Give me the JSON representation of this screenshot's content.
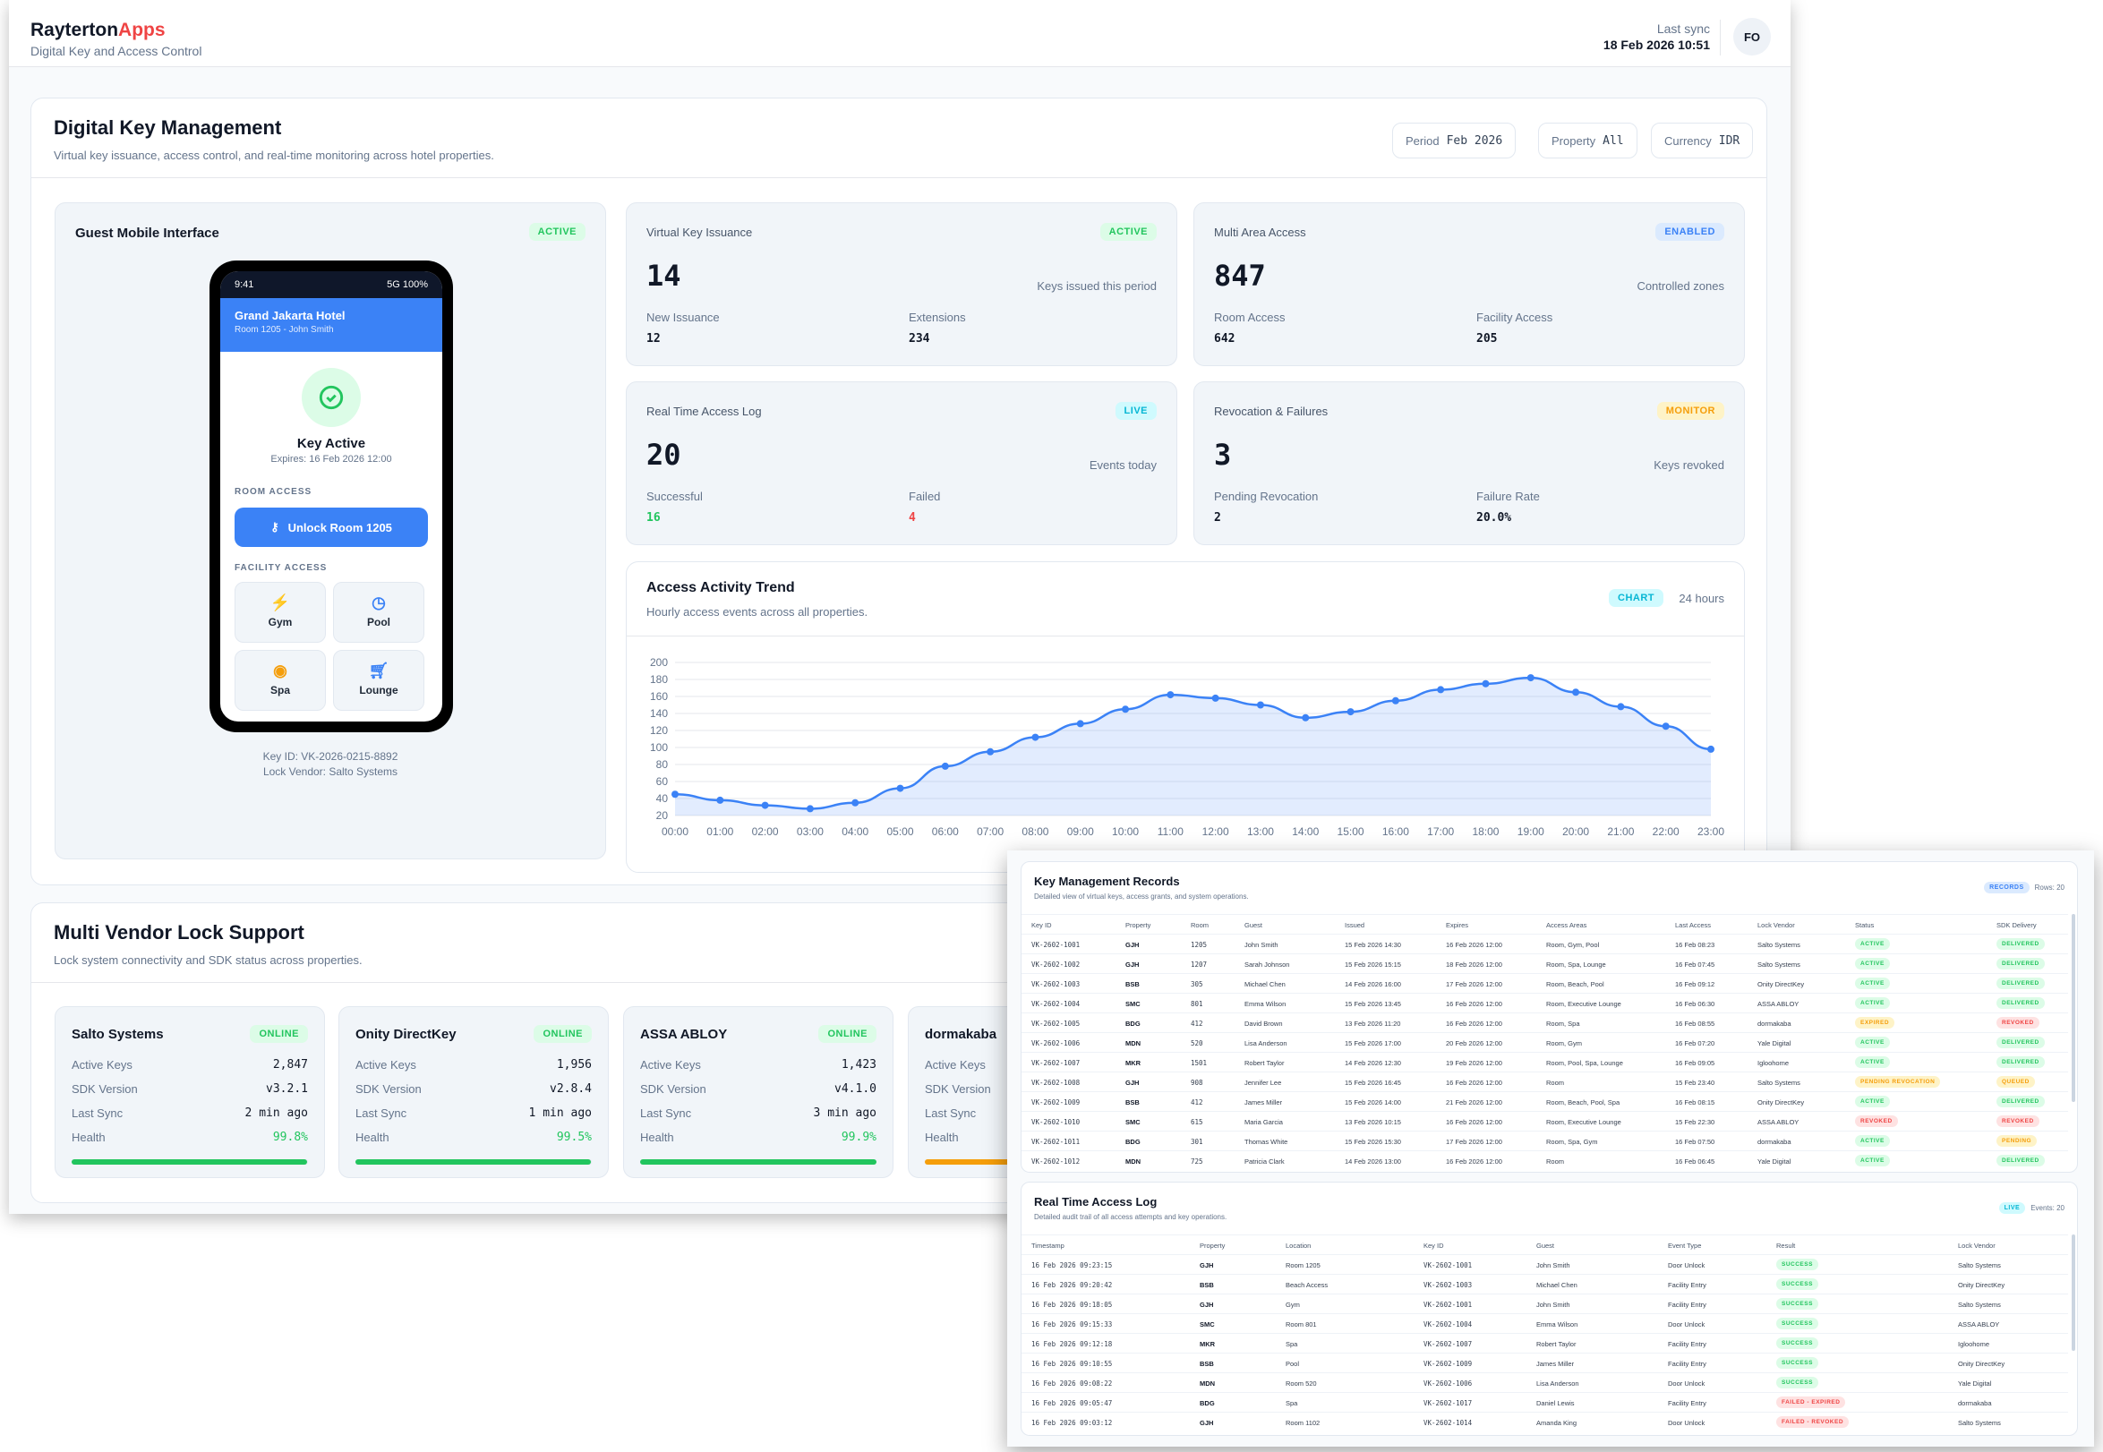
{
  "header": {
    "brand_main": "Rayterton",
    "brand_accent": "Apps",
    "subtitle": "Digital Key and Access Control",
    "last_sync_label": "Last sync",
    "last_sync_value": "18 Feb 2026 10:51",
    "avatar": "FO"
  },
  "page": {
    "title": "Digital Key Management",
    "subtitle": "Virtual key issuance, access control, and real-time monitoring across hotel properties.",
    "filters": [
      {
        "label": "Period",
        "value": "Feb 2026"
      },
      {
        "label": "Property",
        "value": "All"
      },
      {
        "label": "Currency",
        "value": "IDR"
      }
    ]
  },
  "guest": {
    "title": "Guest Mobile Interface",
    "badge": "ACTIVE",
    "time": "9:41",
    "signal": "5G 100%",
    "hotel": "Grand Jakarta Hotel",
    "room_guest": "Room 1205 - John Smith",
    "key_status": "Key Active",
    "expires": "Expires: 16 Feb 2026 12:00",
    "room_access": "ROOM ACCESS",
    "unlock": "Unlock Room 1205",
    "facility_access": "FACILITY ACCESS",
    "facilities": [
      {
        "label": "Gym",
        "icon": "bolt-icon"
      },
      {
        "label": "Pool",
        "icon": "clock-icon"
      },
      {
        "label": "Spa",
        "icon": "map-pin-icon"
      },
      {
        "label": "Lounge",
        "icon": "cart-icon"
      }
    ],
    "key_id": "Key ID: VK-2026-0215-8892",
    "vendor": "Lock Vendor: Salto Systems"
  },
  "stats": [
    {
      "title": "Virtual Key Issuance",
      "badge": "ACTIVE",
      "value": "14",
      "caption": "Keys issued this period",
      "l1": "New Issuance",
      "v1": "12",
      "l2": "Extensions",
      "v2": "234"
    },
    {
      "title": "Multi Area Access",
      "badge": "ENABLED",
      "value": "847",
      "caption": "Controlled zones",
      "l1": "Room Access",
      "v1": "642",
      "l2": "Facility Access",
      "v2": "205"
    },
    {
      "title": "Real Time Access Log",
      "badge": "LIVE",
      "value": "20",
      "caption": "Events today",
      "l1": "Successful",
      "v1": "16",
      "l2": "Failed",
      "v2": "4"
    },
    {
      "title": "Revocation & Failures",
      "badge": "MONITOR",
      "value": "3",
      "caption": "Keys revoked",
      "l1": "Pending Revocation",
      "v1": "2",
      "l2": "Failure Rate",
      "v2": "20.0%"
    }
  ],
  "trend": {
    "title": "Access Activity Trend",
    "subtitle": "Hourly access events across all properties.",
    "badge": "CHART",
    "range": "24 hours"
  },
  "chart_data": {
    "type": "area",
    "x": [
      "00:00",
      "01:00",
      "02:00",
      "03:00",
      "04:00",
      "05:00",
      "06:00",
      "07:00",
      "08:00",
      "09:00",
      "10:00",
      "11:00",
      "12:00",
      "13:00",
      "14:00",
      "15:00",
      "16:00",
      "17:00",
      "18:00",
      "19:00",
      "20:00",
      "21:00",
      "22:00",
      "23:00"
    ],
    "values": [
      45,
      38,
      32,
      28,
      35,
      52,
      78,
      95,
      112,
      128,
      145,
      162,
      158,
      150,
      135,
      142,
      155,
      168,
      175,
      182,
      165,
      148,
      125,
      98
    ],
    "ylim": [
      20,
      200
    ],
    "yticks": [
      "200",
      "180",
      "160",
      "140",
      "120",
      "100",
      "80",
      "60",
      "40",
      "20"
    ],
    "grid": true,
    "color": "#3b82f6"
  },
  "vendors_section": {
    "title": "Multi Vendor Lock Support",
    "subtitle": "Lock system connectivity and SDK status across properties.",
    "labels": {
      "keys": "Active Keys",
      "sdk": "SDK Version",
      "sync": "Last Sync",
      "health": "Health"
    },
    "vendors": [
      {
        "name": "Salto Systems",
        "status": "ONLINE",
        "keys": "2,847",
        "sdk": "v3.2.1",
        "sync": "2 min ago",
        "health": "99.8%",
        "health_pct": 99.8,
        "bar_color": "#22c55e"
      },
      {
        "name": "Onity DirectKey",
        "status": "ONLINE",
        "keys": "1,956",
        "sdk": "v2.8.4",
        "sync": "1 min ago",
        "health": "99.5%",
        "health_pct": 99.5,
        "bar_color": "#22c55e"
      },
      {
        "name": "ASSA ABLOY",
        "status": "ONLINE",
        "keys": "1,423",
        "sdk": "v4.1.0",
        "sync": "3 min ago",
        "health": "99.9%",
        "health_pct": 99.9,
        "bar_color": "#22c55e"
      },
      {
        "name": "dormakaba",
        "bar_color": "#f59e0b"
      }
    ]
  },
  "records": {
    "title": "Key Management Records",
    "subtitle": "Detailed view of virtual keys, access grants, and system operations.",
    "badge": "RECORDS",
    "count": "Rows: 20",
    "columns": [
      "Key ID",
      "Property",
      "Room",
      "Guest",
      "Issued",
      "Expires",
      "Access Areas",
      "Last Access",
      "Lock Vendor",
      "Status",
      "SDK Delivery"
    ],
    "rows": [
      [
        "VK-2602-1001",
        "GJH",
        "1205",
        "John Smith",
        "15 Feb 2026 14:30",
        "16 Feb 2026 12:00",
        "Room, Gym, Pool",
        "16 Feb 08:23",
        "Salto Systems",
        "ACTIVE",
        "DELIVERED"
      ],
      [
        "VK-2602-1002",
        "GJH",
        "1207",
        "Sarah Johnson",
        "15 Feb 2026 15:15",
        "18 Feb 2026 12:00",
        "Room, Spa, Lounge",
        "16 Feb 07:45",
        "Salto Systems",
        "ACTIVE",
        "DELIVERED"
      ],
      [
        "VK-2602-1003",
        "BSB",
        "305",
        "Michael Chen",
        "14 Feb 2026 16:00",
        "17 Feb 2026 12:00",
        "Room, Beach, Pool",
        "16 Feb 09:12",
        "Onity DirectKey",
        "ACTIVE",
        "DELIVERED"
      ],
      [
        "VK-2602-1004",
        "SMC",
        "801",
        "Emma Wilson",
        "15 Feb 2026 13:45",
        "16 Feb 2026 12:00",
        "Room, Executive Lounge",
        "16 Feb 06:30",
        "ASSA ABLOY",
        "ACTIVE",
        "DELIVERED"
      ],
      [
        "VK-2602-1005",
        "BDG",
        "412",
        "David Brown",
        "13 Feb 2026 11:20",
        "16 Feb 2026 12:00",
        "Room, Spa",
        "16 Feb 08:55",
        "dormakaba",
        "EXPIRED",
        "REVOKED"
      ],
      [
        "VK-2602-1006",
        "MDN",
        "520",
        "Lisa Anderson",
        "15 Feb 2026 17:00",
        "20 Feb 2026 12:00",
        "Room, Gym",
        "16 Feb 07:20",
        "Yale Digital",
        "ACTIVE",
        "DELIVERED"
      ],
      [
        "VK-2602-1007",
        "MKR",
        "1501",
        "Robert Taylor",
        "14 Feb 2026 12:30",
        "19 Feb 2026 12:00",
        "Room, Pool, Spa, Lounge",
        "16 Feb 09:05",
        "Igloohome",
        "ACTIVE",
        "DELIVERED"
      ],
      [
        "VK-2602-1008",
        "GJH",
        "908",
        "Jennifer Lee",
        "15 Feb 2026 16:45",
        "16 Feb 2026 12:00",
        "Room",
        "15 Feb 23:40",
        "Salto Systems",
        "PENDING REVOCATION",
        "QUEUED"
      ],
      [
        "VK-2602-1009",
        "BSB",
        "412",
        "James Miller",
        "15 Feb 2026 14:00",
        "21 Feb 2026 12:00",
        "Room, Beach, Pool, Spa",
        "16 Feb 08:15",
        "Onity DirectKey",
        "ACTIVE",
        "DELIVERED"
      ],
      [
        "VK-2602-1010",
        "SMC",
        "615",
        "Maria Garcia",
        "13 Feb 2026 10:15",
        "16 Feb 2026 12:00",
        "Room, Executive Lounge",
        "15 Feb 22:30",
        "ASSA ABLOY",
        "REVOKED",
        "REVOKED"
      ],
      [
        "VK-2602-1011",
        "BDG",
        "301",
        "Thomas White",
        "15 Feb 2026 15:30",
        "17 Feb 2026 12:00",
        "Room, Spa, Gym",
        "16 Feb 07:50",
        "dormakaba",
        "ACTIVE",
        "PENDING"
      ],
      [
        "VK-2602-1012",
        "MDN",
        "725",
        "Patricia Clark",
        "14 Feb 2026 13:00",
        "16 Feb 2026 12:00",
        "Room",
        "16 Feb 06:45",
        "Yale Digital",
        "ACTIVE",
        "DELIVERED"
      ]
    ]
  },
  "access_log": {
    "title": "Real Time Access Log",
    "subtitle": "Detailed audit trail of all access attempts and key operations.",
    "badge": "LIVE",
    "count": "Events: 20",
    "columns": [
      "Timestamp",
      "Property",
      "Location",
      "Key ID",
      "Guest",
      "Event Type",
      "Result",
      "Lock Vendor"
    ],
    "rows": [
      [
        "16 Feb 2026 09:23:15",
        "GJH",
        "Room 1205",
        "VK-2602-1001",
        "John Smith",
        "Door Unlock",
        "SUCCESS",
        "Salto Systems"
      ],
      [
        "16 Feb 2026 09:20:42",
        "BSB",
        "Beach Access",
        "VK-2602-1003",
        "Michael Chen",
        "Facility Entry",
        "SUCCESS",
        "Onity DirectKey"
      ],
      [
        "16 Feb 2026 09:18:05",
        "GJH",
        "Gym",
        "VK-2602-1001",
        "John Smith",
        "Facility Entry",
        "SUCCESS",
        "Salto Systems"
      ],
      [
        "16 Feb 2026 09:15:33",
        "SMC",
        "Room 801",
        "VK-2602-1004",
        "Emma Wilson",
        "Door Unlock",
        "SUCCESS",
        "ASSA ABLOY"
      ],
      [
        "16 Feb 2026 09:12:18",
        "MKR",
        "Spa",
        "VK-2602-1007",
        "Robert Taylor",
        "Facility Entry",
        "SUCCESS",
        "Igloohome"
      ],
      [
        "16 Feb 2026 09:10:55",
        "BSB",
        "Pool",
        "VK-2602-1009",
        "James Miller",
        "Facility Entry",
        "SUCCESS",
        "Onity DirectKey"
      ],
      [
        "16 Feb 2026 09:08:22",
        "MDN",
        "Room 520",
        "VK-2602-1006",
        "Lisa Anderson",
        "Door Unlock",
        "SUCCESS",
        "Yale Digital"
      ],
      [
        "16 Feb 2026 09:05:47",
        "BDG",
        "Spa",
        "VK-2602-1017",
        "Daniel Lewis",
        "Facility Entry",
        "FAILED - EXPIRED",
        "dormakaba"
      ],
      [
        "16 Feb 2026 09:03:12",
        "GJH",
        "Room 1102",
        "VK-2602-1014",
        "Amanda King",
        "Door Unlock",
        "FAILED - REVOKED",
        "Salto Systems"
      ]
    ]
  }
}
